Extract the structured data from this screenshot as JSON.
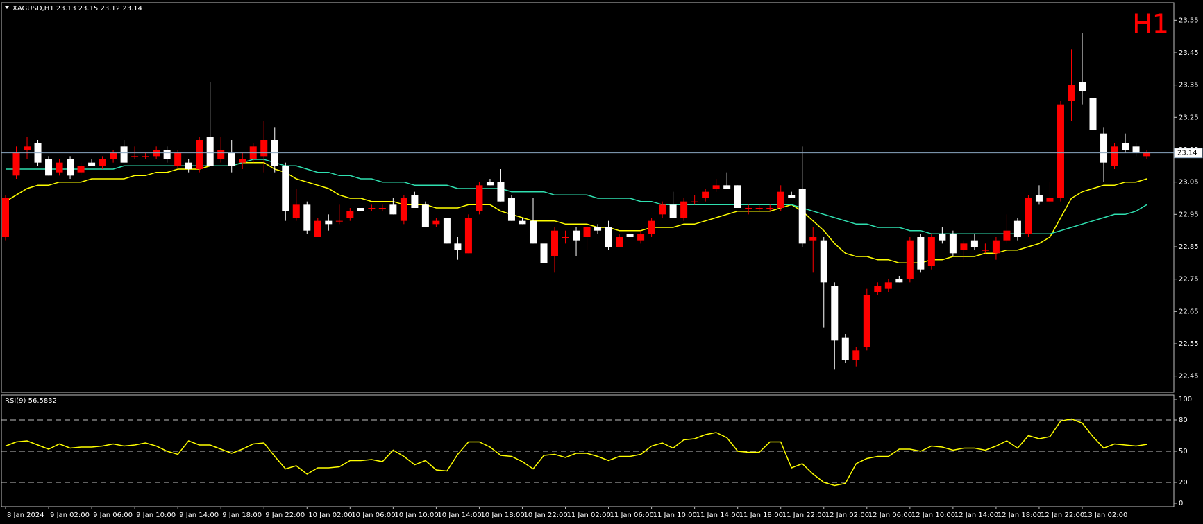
{
  "chart_data": [
    {
      "type": "candlestick",
      "title": "XAGUSD,H1 23.13 23.15 23.12 23.14",
      "annotation": "H1",
      "categories": [
        "8 Jan 2024",
        null,
        null,
        null,
        "9 Jan 02:00",
        null,
        null,
        null,
        "9 Jan 06:00",
        null,
        null,
        null,
        "9 Jan 10:00",
        null,
        null,
        null,
        "9 Jan 14:00",
        null,
        null,
        null,
        "9 Jan 18:00",
        null,
        null,
        null,
        "9 Jan 22:00",
        null,
        null,
        null,
        "10 Jan 02:00",
        null,
        null,
        null,
        "10 Jan 06:00",
        null,
        null,
        null,
        "10 Jan 10:00",
        null,
        null,
        null,
        "10 Jan 14:00",
        null,
        null,
        null,
        "10 Jan 18:00",
        null,
        null,
        null,
        "10 Jan 22:00",
        null,
        null,
        null,
        "11 Jan 02:00",
        null,
        null,
        null,
        "11 Jan 06:00",
        null,
        null,
        null,
        "11 Jan 10:00",
        null,
        null,
        null,
        "11 Jan 14:00",
        null,
        null,
        null,
        "11 Jan 18:00",
        null,
        null,
        null,
        "11 Jan 22:00",
        null,
        null,
        null,
        "12 Jan 02:00",
        null,
        null,
        null,
        "12 Jan 06:00",
        null,
        null,
        null,
        "12 Jan 10:00",
        null,
        null,
        null,
        "12 Jan 14:00",
        null,
        null,
        null,
        "12 Jan 18:00",
        null,
        null,
        null,
        "12 Jan 22:00",
        null,
        null,
        null,
        "13 Jan 02:00",
        null,
        null,
        null,
        null,
        null,
        null
      ],
      "ohlc": [
        [
          22.88,
          23.01,
          22.87,
          23.0
        ],
        [
          23.07,
          23.16,
          23.06,
          23.14
        ],
        [
          23.15,
          23.19,
          23.12,
          23.16
        ],
        [
          23.17,
          23.18,
          23.1,
          23.11
        ],
        [
          23.12,
          23.13,
          23.07,
          23.07
        ],
        [
          23.08,
          23.12,
          23.07,
          23.11
        ],
        [
          23.12,
          23.13,
          23.06,
          23.07
        ],
        [
          23.08,
          23.11,
          23.07,
          23.1
        ],
        [
          23.11,
          23.12,
          23.1,
          23.1
        ],
        [
          23.1,
          23.13,
          23.09,
          23.12
        ],
        [
          23.12,
          23.15,
          23.11,
          23.14
        ],
        [
          23.16,
          23.18,
          23.11,
          23.11
        ],
        [
          23.13,
          23.16,
          23.12,
          23.13
        ],
        [
          23.13,
          23.14,
          23.12,
          23.13
        ],
        [
          23.13,
          23.16,
          23.12,
          23.15
        ],
        [
          23.15,
          23.16,
          23.11,
          23.12
        ],
        [
          23.1,
          23.15,
          23.09,
          23.14
        ],
        [
          23.11,
          23.12,
          23.08,
          23.09
        ],
        [
          23.09,
          23.19,
          23.08,
          23.18
        ],
        [
          23.19,
          23.36,
          23.1,
          23.1
        ],
        [
          23.12,
          23.19,
          23.11,
          23.15
        ],
        [
          23.14,
          23.18,
          23.08,
          23.1
        ],
        [
          23.11,
          23.14,
          23.09,
          23.12
        ],
        [
          23.12,
          23.17,
          23.11,
          23.16
        ],
        [
          23.13,
          23.24,
          23.08,
          23.18
        ],
        [
          23.18,
          23.22,
          23.08,
          23.1
        ],
        [
          23.1,
          23.11,
          22.93,
          22.96
        ],
        [
          22.94,
          23.03,
          22.93,
          22.98
        ],
        [
          22.98,
          22.99,
          22.89,
          22.9
        ],
        [
          22.88,
          22.94,
          22.88,
          22.93
        ],
        [
          22.93,
          22.95,
          22.9,
          22.92
        ],
        [
          22.93,
          22.98,
          22.92,
          22.93
        ],
        [
          22.94,
          22.97,
          22.93,
          22.96
        ],
        [
          22.97,
          22.97,
          22.96,
          22.96
        ],
        [
          22.97,
          22.98,
          22.96,
          22.97
        ],
        [
          22.97,
          22.98,
          22.96,
          22.97
        ],
        [
          22.98,
          23.0,
          22.95,
          22.95
        ],
        [
          22.93,
          23.01,
          22.92,
          23.0
        ],
        [
          23.01,
          23.02,
          22.97,
          22.97
        ],
        [
          22.98,
          22.99,
          22.91,
          22.91
        ],
        [
          22.92,
          22.94,
          22.91,
          22.93
        ],
        [
          22.94,
          22.94,
          22.86,
          22.86
        ],
        [
          22.86,
          22.88,
          22.81,
          22.84
        ],
        [
          22.83,
          22.95,
          22.83,
          22.94
        ],
        [
          22.96,
          23.05,
          22.95,
          23.04
        ],
        [
          23.05,
          23.06,
          23.04,
          23.04
        ],
        [
          23.05,
          23.09,
          22.99,
          22.99
        ],
        [
          23.0,
          23.01,
          22.93,
          22.93
        ],
        [
          22.93,
          22.94,
          22.92,
          22.92
        ],
        [
          22.93,
          23.0,
          22.86,
          22.86
        ],
        [
          22.86,
          22.87,
          22.78,
          22.8
        ],
        [
          22.82,
          22.91,
          22.77,
          22.9
        ],
        [
          22.88,
          22.9,
          22.86,
          22.88
        ],
        [
          22.9,
          22.91,
          22.82,
          22.87
        ],
        [
          22.88,
          22.92,
          22.84,
          22.91
        ],
        [
          22.91,
          22.92,
          22.89,
          22.9
        ],
        [
          22.91,
          22.93,
          22.84,
          22.85
        ],
        [
          22.85,
          22.89,
          22.85,
          22.88
        ],
        [
          22.89,
          22.89,
          22.88,
          22.88
        ],
        [
          22.87,
          22.9,
          22.86,
          22.89
        ],
        [
          22.89,
          22.94,
          22.88,
          22.93
        ],
        [
          22.95,
          22.99,
          22.94,
          22.98
        ],
        [
          22.98,
          23.02,
          22.94,
          22.94
        ],
        [
          22.94,
          23.0,
          22.93,
          22.99
        ],
        [
          22.99,
          23.01,
          22.98,
          22.99
        ],
        [
          23.0,
          23.03,
          22.99,
          23.02
        ],
        [
          23.03,
          23.06,
          23.02,
          23.04
        ],
        [
          23.04,
          23.08,
          23.03,
          23.03
        ],
        [
          23.04,
          23.04,
          22.97,
          22.97
        ],
        [
          22.97,
          22.98,
          22.95,
          22.97
        ],
        [
          22.97,
          22.98,
          22.96,
          22.97
        ],
        [
          22.97,
          22.98,
          22.96,
          22.97
        ],
        [
          22.97,
          23.04,
          22.96,
          23.02
        ],
        [
          23.01,
          23.02,
          23.0,
          23.0
        ],
        [
          23.03,
          23.16,
          22.85,
          22.86
        ],
        [
          22.87,
          22.91,
          22.77,
          22.88
        ],
        [
          22.87,
          22.88,
          22.6,
          22.74
        ],
        [
          22.73,
          22.74,
          22.47,
          22.56
        ],
        [
          22.57,
          22.58,
          22.49,
          22.5
        ],
        [
          22.5,
          22.54,
          22.48,
          22.53
        ],
        [
          22.54,
          22.72,
          22.53,
          22.7
        ],
        [
          22.71,
          22.74,
          22.7,
          22.73
        ],
        [
          22.72,
          22.75,
          22.71,
          22.74
        ],
        [
          22.75,
          22.76,
          22.74,
          22.74
        ],
        [
          22.75,
          22.88,
          22.74,
          22.87
        ],
        [
          22.88,
          22.89,
          22.77,
          22.78
        ],
        [
          22.79,
          22.89,
          22.78,
          22.88
        ],
        [
          22.89,
          22.91,
          22.86,
          22.87
        ],
        [
          22.89,
          22.9,
          22.82,
          22.83
        ],
        [
          22.84,
          22.87,
          22.81,
          22.86
        ],
        [
          22.87,
          22.89,
          22.84,
          22.85
        ],
        [
          22.84,
          22.86,
          22.83,
          22.84
        ],
        [
          22.83,
          22.88,
          22.81,
          22.87
        ],
        [
          22.87,
          22.95,
          22.86,
          22.9
        ],
        [
          22.93,
          22.94,
          22.87,
          22.88
        ],
        [
          22.89,
          23.01,
          22.88,
          23.0
        ],
        [
          23.01,
          23.04,
          22.98,
          22.99
        ],
        [
          22.99,
          23.05,
          22.98,
          23.0
        ],
        [
          23.0,
          23.3,
          22.99,
          23.29
        ],
        [
          23.3,
          23.46,
          23.24,
          23.35
        ],
        [
          23.36,
          23.51,
          23.29,
          23.33
        ],
        [
          23.31,
          23.36,
          23.2,
          23.21
        ],
        [
          23.2,
          23.22,
          23.05,
          23.11
        ],
        [
          23.1,
          23.17,
          23.09,
          23.16
        ],
        [
          23.17,
          23.2,
          23.14,
          23.15
        ],
        [
          23.16,
          23.17,
          23.13,
          23.14
        ],
        [
          23.13,
          23.15,
          23.12,
          23.14
        ]
      ],
      "up_color": "#ff0000",
      "down_color": "#ffffff",
      "series": [
        {
          "color": "#ffff00",
          "values": [
            22.99,
            23.01,
            23.03,
            23.04,
            23.04,
            23.05,
            23.05,
            23.05,
            23.06,
            23.06,
            23.06,
            23.06,
            23.07,
            23.07,
            23.08,
            23.08,
            23.09,
            23.09,
            23.09,
            23.1,
            23.1,
            23.1,
            23.11,
            23.11,
            23.11,
            23.09,
            23.08,
            23.06,
            23.05,
            23.04,
            23.03,
            23.01,
            23.0,
            23.0,
            22.99,
            22.99,
            22.99,
            22.98,
            22.98,
            22.98,
            22.97,
            22.97,
            22.97,
            22.98,
            22.98,
            22.98,
            22.96,
            22.95,
            22.94,
            22.93,
            22.93,
            22.93,
            22.92,
            22.92,
            22.92,
            22.91,
            22.91,
            22.9,
            22.9,
            22.9,
            22.91,
            22.91,
            22.91,
            22.92,
            22.92,
            22.93,
            22.94,
            22.95,
            22.96,
            22.96,
            22.96,
            22.96,
            22.97,
            22.98,
            22.96,
            22.93,
            22.9,
            22.86,
            22.83,
            22.82,
            22.82,
            22.81,
            22.81,
            22.8,
            22.8,
            22.8,
            22.81,
            22.81,
            22.82,
            22.82,
            22.82,
            22.83,
            22.83,
            22.84,
            22.84,
            22.85,
            22.86,
            22.88,
            22.94,
            23.0,
            23.02,
            23.03,
            23.04,
            23.04,
            23.05,
            23.05,
            23.06
          ]
        },
        {
          "color": "#2fe0b0",
          "values": [
            23.09,
            23.09,
            23.09,
            23.09,
            23.09,
            23.09,
            23.09,
            23.09,
            23.09,
            23.09,
            23.09,
            23.1,
            23.1,
            23.1,
            23.1,
            23.1,
            23.1,
            23.1,
            23.1,
            23.1,
            23.1,
            23.1,
            23.11,
            23.12,
            23.12,
            23.11,
            23.1,
            23.1,
            23.09,
            23.08,
            23.08,
            23.07,
            23.07,
            23.06,
            23.06,
            23.05,
            23.05,
            23.05,
            23.04,
            23.04,
            23.04,
            23.04,
            23.03,
            23.03,
            23.03,
            23.03,
            23.03,
            23.02,
            23.02,
            23.02,
            23.02,
            23.01,
            23.01,
            23.01,
            23.01,
            23.0,
            23.0,
            23.0,
            23.0,
            22.99,
            22.99,
            22.98,
            22.98,
            22.98,
            22.98,
            22.98,
            22.98,
            22.98,
            22.98,
            22.98,
            22.98,
            22.98,
            22.98,
            22.98,
            22.97,
            22.96,
            22.95,
            22.94,
            22.93,
            22.92,
            22.92,
            22.91,
            22.91,
            22.91,
            22.9,
            22.9,
            22.89,
            22.89,
            22.89,
            22.89,
            22.89,
            22.89,
            22.89,
            22.89,
            22.89,
            22.89,
            22.89,
            22.89,
            22.9,
            22.91,
            22.92,
            22.93,
            22.94,
            22.95,
            22.95,
            22.96,
            22.98
          ]
        }
      ],
      "current_price": 23.14,
      "ylim": [
        22.4,
        23.6
      ],
      "yticks": [
        22.45,
        22.55,
        22.65,
        22.75,
        22.85,
        22.95,
        23.05,
        23.15,
        23.25,
        23.35,
        23.45,
        23.55
      ]
    },
    {
      "type": "line",
      "title": "RSI(9) 56.5832",
      "series": [
        {
          "color": "#ffff00",
          "values": [
            55,
            59,
            60,
            56,
            52,
            57,
            53,
            54,
            54,
            55,
            57,
            55,
            56,
            58,
            55,
            50,
            47,
            60,
            56,
            56,
            52,
            48,
            52,
            57,
            58,
            45,
            33,
            36,
            28,
            34,
            34,
            35,
            41,
            41,
            42,
            40,
            51,
            45,
            37,
            41,
            32,
            31,
            47,
            59,
            59,
            54,
            46,
            45,
            40,
            33,
            46,
            47,
            44,
            48,
            48,
            45,
            41,
            45,
            45,
            47,
            55,
            58,
            53,
            61,
            62,
            66,
            68,
            63,
            50,
            49,
            49,
            59,
            59,
            34,
            38,
            28,
            20,
            17,
            19,
            38,
            43,
            45,
            45,
            52,
            52,
            50,
            55,
            54,
            51,
            53,
            53,
            51,
            55,
            60,
            53,
            65,
            62,
            64,
            79,
            81,
            77,
            64,
            53,
            57,
            56,
            55,
            56.5832
          ]
        }
      ],
      "ylim": [
        0,
        100
      ],
      "yticks": [
        0,
        20,
        50,
        80,
        100
      ],
      "levels": [
        20,
        50,
        80
      ]
    }
  ]
}
